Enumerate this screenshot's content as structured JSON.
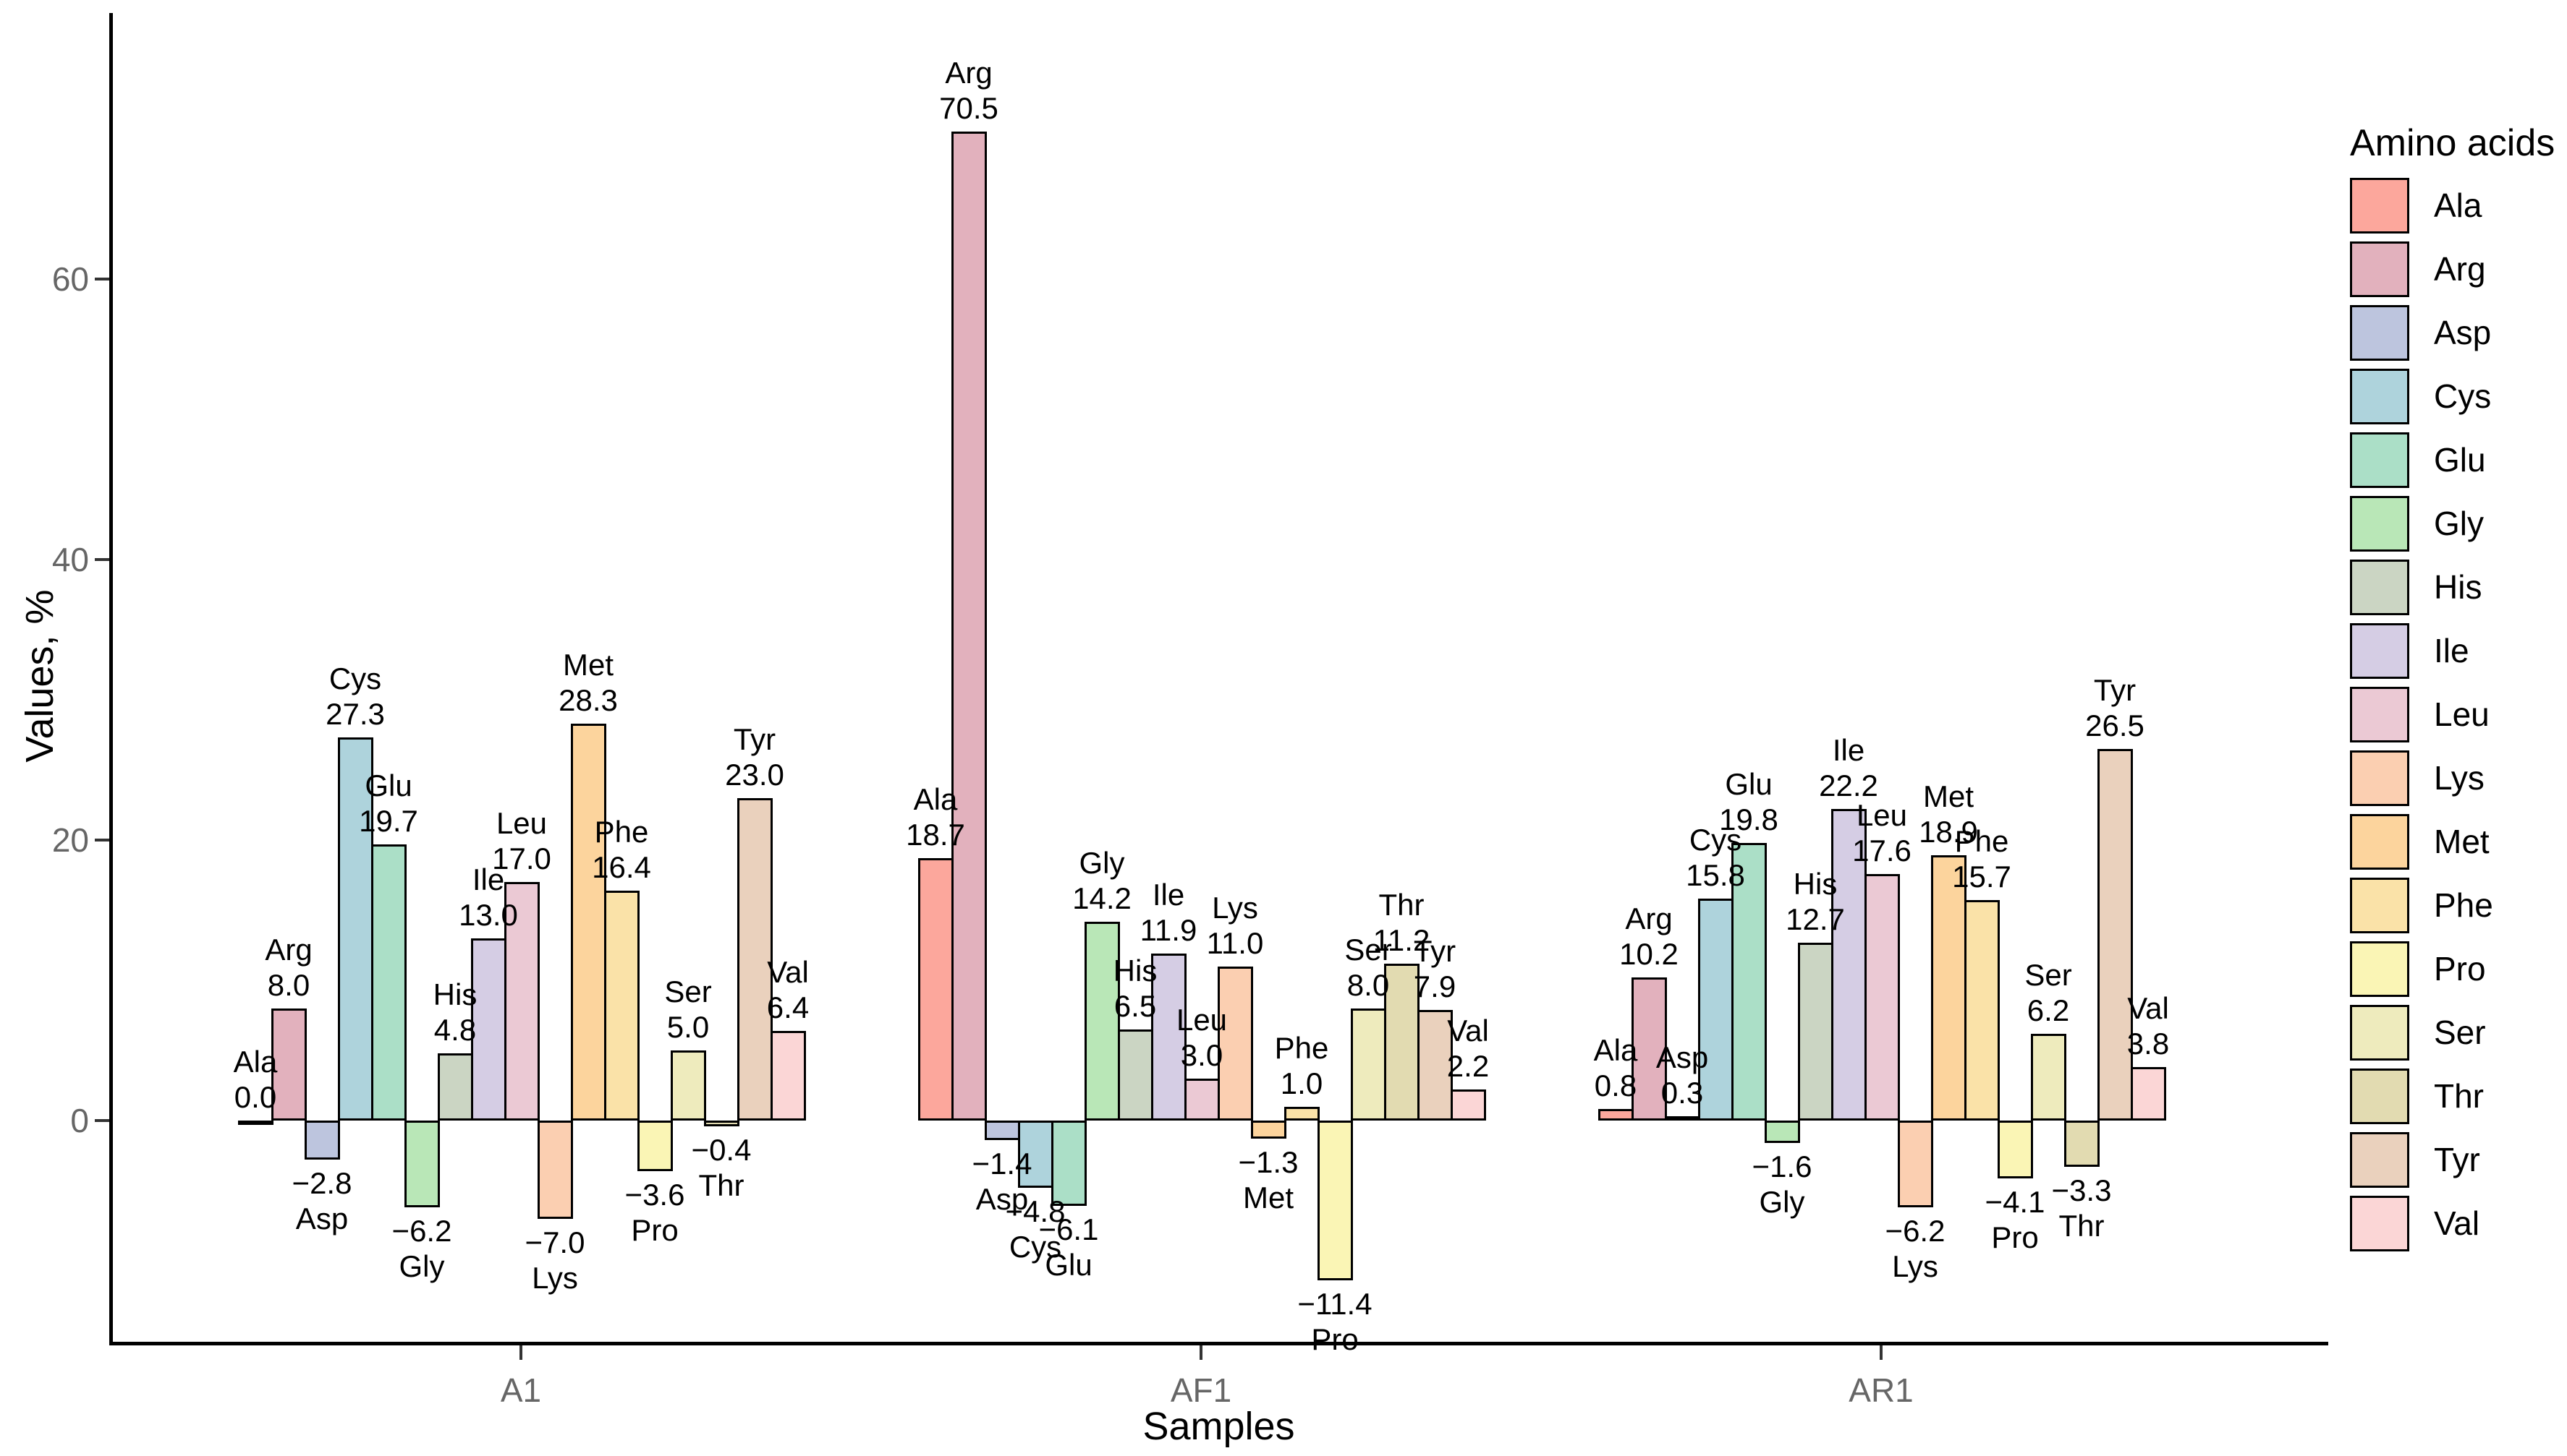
{
  "chart_data": {
    "type": "bar",
    "title": "",
    "xlabel": "Samples",
    "ylabel": "Values, %",
    "legend_title": "Amino acids",
    "legend_position": "right",
    "grid": false,
    "yticks": [
      0,
      20,
      40,
      60
    ],
    "ylim": [
      -16,
      79
    ],
    "value_label_format": "one-decimal",
    "categories": [
      "A1",
      "AF1",
      "AR1"
    ],
    "series": [
      {
        "name": "Ala",
        "color": "#FCA79C",
        "values": [
          0.0,
          18.7,
          0.8
        ]
      },
      {
        "name": "Arg",
        "color": "#E2B1BD",
        "values": [
          8.0,
          70.5,
          10.2
        ]
      },
      {
        "name": "Asp",
        "color": "#BDC5DE",
        "values": [
          -2.8,
          -1.4,
          0.3
        ]
      },
      {
        "name": "Cys",
        "color": "#AED3DC",
        "values": [
          27.3,
          -4.8,
          15.8
        ]
      },
      {
        "name": "Glu",
        "color": "#ABDFC7",
        "values": [
          19.7,
          -6.1,
          19.8
        ]
      },
      {
        "name": "Gly",
        "color": "#B9E7B7",
        "values": [
          -6.2,
          14.2,
          -1.6
        ]
      },
      {
        "name": "His",
        "color": "#CBD5C3",
        "values": [
          4.8,
          6.5,
          12.7
        ]
      },
      {
        "name": "Ile",
        "color": "#D5CDE4",
        "values": [
          13.0,
          11.9,
          22.2
        ]
      },
      {
        "name": "Leu",
        "color": "#EBC9D4",
        "values": [
          17.0,
          3.0,
          17.6
        ]
      },
      {
        "name": "Lys",
        "color": "#FBCFB1",
        "values": [
          -7.0,
          11.0,
          -6.2
        ]
      },
      {
        "name": "Met",
        "color": "#FCD49D",
        "values": [
          28.3,
          -1.3,
          18.9
        ]
      },
      {
        "name": "Phe",
        "color": "#FAE2A8",
        "values": [
          16.4,
          1.0,
          15.7
        ]
      },
      {
        "name": "Pro",
        "color": "#FAF5B5",
        "values": [
          -3.6,
          -11.4,
          -4.1
        ]
      },
      {
        "name": "Ser",
        "color": "#EEEBBD",
        "values": [
          5.0,
          8.0,
          6.2
        ]
      },
      {
        "name": "Thr",
        "color": "#E2DBB1",
        "values": [
          -0.4,
          11.2,
          -3.3
        ]
      },
      {
        "name": "Tyr",
        "color": "#EAD1BD",
        "values": [
          23.0,
          7.9,
          26.5
        ]
      },
      {
        "name": "Val",
        "color": "#FBD6D6",
        "values": [
          6.4,
          2.2,
          3.8
        ]
      }
    ]
  },
  "colors": {
    "axis_line": "#000000",
    "tick_mark": "#333333",
    "tick_text": "#666666",
    "label_text": "#000000",
    "background": "#ffffff"
  }
}
